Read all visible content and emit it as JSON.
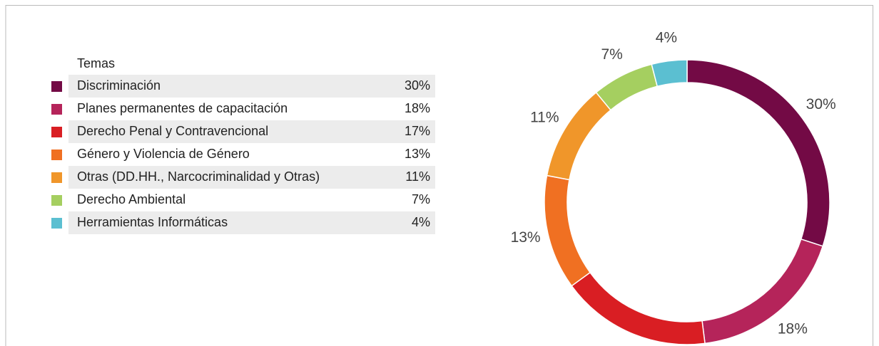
{
  "chart_data": {
    "type": "donut",
    "legend_title": "Temas",
    "categories": [
      "Discriminación",
      "Planes permanentes de capacitación",
      "Derecho Penal y Contravencional",
      "Género y Violencia de Género",
      "Otras (DD.HH., Narcocriminalidad y Otras)",
      "Derecho Ambiental",
      "Herramientas Informáticas"
    ],
    "values": [
      30,
      18,
      17,
      13,
      11,
      7,
      4
    ],
    "value_labels": [
      "30%",
      "18%",
      "17%",
      "13%",
      "11%",
      "7%",
      "4%"
    ],
    "colors": [
      "#730a45",
      "#b5245a",
      "#d91e23",
      "#f07022",
      "#f0962a",
      "#a5cf60",
      "#5bbfd1"
    ],
    "legend": "left"
  }
}
